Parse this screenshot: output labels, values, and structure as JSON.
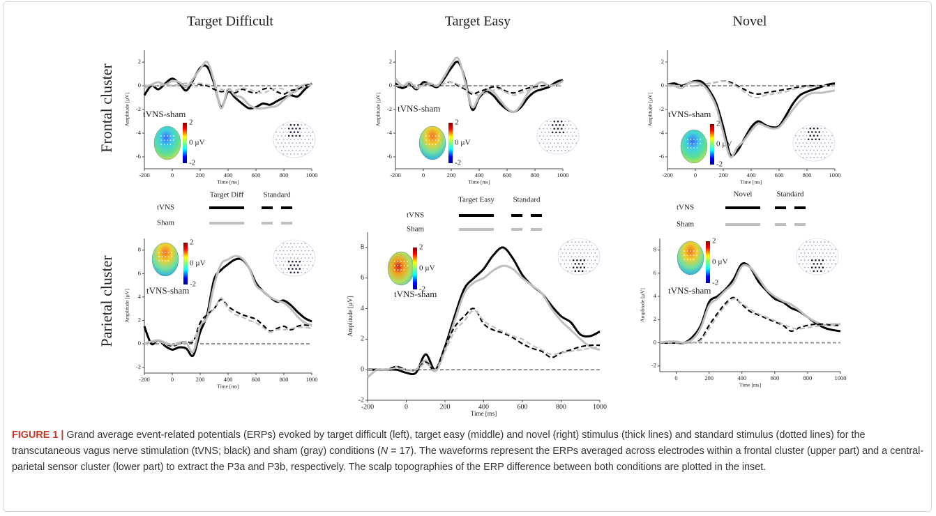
{
  "columns": [
    "Target Difficult",
    "Target Easy",
    "Novel"
  ],
  "rows": [
    "Frontal cluster",
    "Parietal cluster"
  ],
  "legends": [
    {
      "columns": [
        "Target Diff",
        "Standard"
      ],
      "rows": [
        "tVNS",
        "Sham"
      ]
    },
    {
      "columns": [
        "Target Easy",
        "Standard"
      ],
      "rows": [
        "tVNS",
        "Sham"
      ]
    },
    {
      "columns": [
        "Novel",
        "Standard"
      ],
      "rows": [
        "tVNS",
        "Sham"
      ]
    }
  ],
  "caption": {
    "label": "FIGURE 1 |",
    "text_before": "Grand average event-related potentials (ERPs) evoked by target difficult (left), target easy (middle) and novel (right) stimulus (thick lines) and standard stimulus (dotted lines) for the transcutaneous vagus nerve stimulation (tVNS; black) and sham (gray) conditions (",
    "italic": "N",
    "text_after": " = 17). The waveforms represent the ERPs averaged across electrodes within a frontal cluster (upper part) and a central-parietal sensor cluster (lower part) to extract the P3a and P3b, respectively. The scalp topographies of the ERP difference between both conditions are plotted in the inset."
  },
  "chart_data": [
    {
      "type": "line",
      "xlabel": "Time [ms]",
      "ylabel": "Amplitude [µV]",
      "annotation": "tVNS-sham",
      "x": [
        -200,
        -150,
        -100,
        -50,
        0,
        50,
        100,
        150,
        200,
        250,
        300,
        350,
        400,
        450,
        500,
        550,
        600,
        650,
        700,
        750,
        800,
        850,
        900,
        950,
        1000
      ],
      "xlim": [
        -200,
        1000
      ],
      "xticks": [
        -200,
        0,
        200,
        400,
        600,
        800,
        1000
      ],
      "ylim": [
        -7,
        3
      ],
      "yticks": [
        -6,
        -4,
        -2,
        0,
        2
      ],
      "clim": [
        -2,
        2
      ],
      "colorbar_ticks": [
        2,
        {
          "value": 0,
          "label": "0 µV"
        },
        -2
      ],
      "series": [
        {
          "color": "#000000",
          "dashed": false,
          "values": [
            -0.8,
            0,
            -0.3,
            0.2,
            0.6,
            0.2,
            -0.4,
            0.5,
            1.5,
            1.6,
            0.2,
            -1.8,
            -0.5,
            -1.0,
            -1.5,
            -1.9,
            -1.8,
            -1.5,
            -1.6,
            -1.3,
            -1.0,
            -0.8,
            -0.9,
            -0.3,
            0.2
          ]
        },
        {
          "color": "#bfbfbf",
          "dashed": false,
          "values": [
            -0.2,
            0.1,
            0.3,
            0.1,
            0.4,
            0.3,
            -0.1,
            0.6,
            1.4,
            2.0,
            0.4,
            -1.9,
            -0.3,
            -0.8,
            -1.0,
            -1.6,
            -1.9,
            -1.9,
            -1.8,
            -1.7,
            -1.2,
            -0.7,
            -0.2,
            0.1,
            0.1
          ]
        },
        {
          "color": "#000000",
          "dashed": true,
          "values": [
            0,
            0,
            0,
            0.1,
            0,
            0.1,
            0.2,
            0.2,
            0.1,
            0,
            -0.3,
            -0.5,
            -0.4,
            -0.6,
            -0.3,
            -0.5,
            -0.6,
            -0.3,
            -0.2,
            -0.5,
            -0.7,
            -0.4,
            -0.3,
            0,
            0.1
          ]
        },
        {
          "color": "#bfbfbf",
          "dashed": true,
          "values": [
            0,
            0,
            0,
            0.1,
            0,
            0.1,
            0.2,
            0.2,
            0.2,
            0.1,
            -0.1,
            -0.3,
            -0.4,
            -0.4,
            -0.2,
            -0.3,
            -0.5,
            -0.6,
            -0.4,
            -0.2,
            -0.3,
            -0.6,
            -0.4,
            -0.1,
            0.1
          ]
        }
      ]
    },
    {
      "type": "line",
      "xlabel": "Time [ms]",
      "ylabel": "Amplitude [µV]",
      "annotation": "tVNS-sham",
      "x": [
        -200,
        -150,
        -100,
        -50,
        0,
        50,
        100,
        150,
        200,
        250,
        300,
        350,
        400,
        450,
        500,
        550,
        600,
        650,
        700,
        750,
        800,
        850,
        900,
        950,
        1000
      ],
      "xlim": [
        -200,
        1000
      ],
      "xticks": [
        -200,
        0,
        200,
        400,
        600,
        800,
        1000
      ],
      "ylim": [
        -7,
        3
      ],
      "yticks": [
        -6,
        -4,
        -2,
        0,
        2
      ],
      "clim": [
        -2,
        2
      ],
      "colorbar_ticks": [
        2,
        {
          "value": 0,
          "label": "0 µV"
        },
        -2
      ],
      "series": [
        {
          "color": "#000000",
          "dashed": false,
          "values": [
            0.2,
            -0.2,
            0.2,
            -0.3,
            0.3,
            0.1,
            -0.1,
            0.6,
            1.5,
            2.0,
            0.5,
            -2.0,
            -1.0,
            -0.5,
            -0.8,
            -1.5,
            -2.0,
            -2.2,
            -1.8,
            -1.0,
            -0.5,
            -0.3,
            -0.1,
            0.3,
            0.5
          ]
        },
        {
          "color": "#bfbfbf",
          "dashed": false,
          "values": [
            0.6,
            0.0,
            0.3,
            -0.2,
            0.1,
            0.2,
            0.0,
            0.8,
            1.8,
            2.3,
            0.3,
            -1.8,
            -0.9,
            -0.3,
            -0.5,
            -1.2,
            -1.9,
            -2.2,
            -1.6,
            -0.6,
            0.0,
            0.3,
            0.0,
            0.1,
            0.4
          ]
        },
        {
          "color": "#000000",
          "dashed": true,
          "values": [
            0,
            -0.2,
            0,
            0,
            0.1,
            0.1,
            0,
            0.2,
            0.3,
            0,
            -0.3,
            -0.7,
            -0.5,
            -0.3,
            -0.1,
            -0.2,
            -0.5,
            -0.6,
            -0.4,
            -0.2,
            -0.1,
            0,
            0,
            0,
            0
          ]
        },
        {
          "color": "#bfbfbf",
          "dashed": true,
          "values": [
            0,
            0,
            0.1,
            0,
            0,
            0.1,
            0,
            0.2,
            0.3,
            0.1,
            -0.2,
            -0.6,
            -0.8,
            -0.6,
            -0.4,
            -0.3,
            -0.6,
            -0.8,
            -0.6,
            -0.4,
            -0.2,
            -0.1,
            0,
            0,
            0
          ]
        }
      ]
    },
    {
      "type": "line",
      "xlabel": "Time [ms]",
      "ylabel": "Amplitude [µV]",
      "annotation": "tVNS-sham",
      "x": [
        -200,
        -150,
        -100,
        -50,
        0,
        50,
        100,
        150,
        200,
        250,
        300,
        350,
        400,
        450,
        500,
        550,
        600,
        650,
        700,
        750,
        800,
        850,
        900,
        950,
        1000
      ],
      "xlim": [
        -200,
        1000
      ],
      "xticks": [
        -200,
        0,
        200,
        400,
        600,
        800,
        1000
      ],
      "ylim": [
        -7,
        3
      ],
      "yticks": [
        -6,
        -4,
        -2,
        0,
        2
      ],
      "clim": [
        -2,
        2
      ],
      "colorbar_ticks": [
        2,
        {
          "value": 0,
          "label": "0 µV"
        },
        -2
      ],
      "series": [
        {
          "color": "#000000",
          "dashed": false,
          "values": [
            0.1,
            0.2,
            0,
            0.2,
            0.4,
            0.3,
            -0.4,
            -1.5,
            -3.5,
            -5.8,
            -5.5,
            -4.5,
            -3.5,
            -3.0,
            -3.3,
            -3.5,
            -3.4,
            -2.5,
            -1.5,
            -0.8,
            -0.5,
            -0.3,
            -0.1,
            0.1,
            0.2
          ]
        },
        {
          "color": "#bfbfbf",
          "dashed": false,
          "values": [
            0.1,
            0.0,
            -0.2,
            0.2,
            0.3,
            0.1,
            -0.6,
            -1.8,
            -4.0,
            -6.0,
            -5.2,
            -4.6,
            -3.8,
            -3.2,
            -3.4,
            -3.6,
            -3.5,
            -2.8,
            -2.0,
            -1.3,
            -0.8,
            -0.6,
            -0.6,
            -0.5,
            -0.4
          ]
        },
        {
          "color": "#000000",
          "dashed": true,
          "values": [
            0,
            0,
            0,
            0,
            0,
            0.1,
            0.2,
            0.3,
            0.4,
            0.3,
            0,
            -0.3,
            -0.6,
            -0.7,
            -0.6,
            -0.5,
            -0.4,
            -0.3,
            -0.2,
            -0.1,
            0,
            0,
            0,
            0,
            0
          ]
        },
        {
          "color": "#bfbfbf",
          "dashed": true,
          "values": [
            0,
            0,
            0,
            0,
            0,
            0.1,
            0.2,
            0.3,
            0.4,
            0.2,
            -0.1,
            -0.5,
            -0.9,
            -1.0,
            -0.8,
            -0.7,
            -0.6,
            -0.5,
            -0.3,
            -0.2,
            -0.1,
            -0.1,
            0,
            0,
            0
          ]
        }
      ]
    },
    {
      "type": "line",
      "xlabel": "Time [ms]",
      "ylabel": "Amplitude [µV]",
      "annotation": "tVNS-sham",
      "x": [
        -200,
        -150,
        -100,
        -50,
        0,
        50,
        100,
        150,
        200,
        250,
        300,
        350,
        400,
        450,
        500,
        550,
        600,
        650,
        700,
        750,
        800,
        850,
        900,
        950,
        1000
      ],
      "xlim": [
        -200,
        1000
      ],
      "xticks": [
        -200,
        0,
        200,
        400,
        600,
        800,
        1000
      ],
      "ylim": [
        -2.5,
        9
      ],
      "yticks": [
        -2,
        0,
        2,
        4,
        6,
        8
      ],
      "clim": [
        -2,
        2
      ],
      "colorbar_ticks": [
        2,
        {
          "value": 0,
          "label": "0 µV"
        },
        -2
      ],
      "series": [
        {
          "color": "#000000",
          "dashed": false,
          "values": [
            1.5,
            0,
            0.3,
            -0.2,
            -0.5,
            -0.3,
            -0.4,
            -1.0,
            1.0,
            2.5,
            5.5,
            6.3,
            6.8,
            7.2,
            7.2,
            6.5,
            5.2,
            4.5,
            4.0,
            3.6,
            3.7,
            3.3,
            2.7,
            2.2,
            1.9
          ]
        },
        {
          "color": "#bfbfbf",
          "dashed": false,
          "values": [
            0,
            0.2,
            0.3,
            0.1,
            -0.1,
            0.1,
            0.1,
            -0.7,
            1.5,
            2.3,
            5.0,
            6.8,
            7.2,
            7.5,
            7.3,
            6.5,
            5.0,
            4.5,
            4.0,
            3.7,
            3.5,
            3.0,
            2.3,
            1.8,
            1.6
          ]
        },
        {
          "color": "#000000",
          "dashed": true,
          "values": [
            0,
            0.1,
            0.2,
            0,
            -0.2,
            0,
            0.2,
            0.2,
            1.8,
            2.5,
            3.0,
            3.8,
            3.2,
            2.8,
            2.5,
            2.3,
            2.1,
            1.6,
            1.1,
            1.3,
            1.5,
            1.2,
            1.5,
            1.6,
            1.5
          ]
        },
        {
          "color": "#bfbfbf",
          "dashed": true,
          "values": [
            0,
            0.1,
            0.2,
            0,
            -0.1,
            0,
            0.2,
            0.3,
            1.5,
            2.3,
            3.0,
            3.9,
            3.0,
            2.5,
            2.3,
            2.0,
            1.8,
            1.4,
            1.0,
            1.2,
            1.2,
            1.3,
            1.4,
            1.4,
            1.3
          ]
        }
      ]
    },
    {
      "type": "line",
      "xlabel": "Time [ms]",
      "ylabel": "Amplitude [µV]",
      "annotation": "tVNS-sham",
      "x": [
        -200,
        -150,
        -100,
        -50,
        0,
        50,
        100,
        150,
        200,
        250,
        300,
        350,
        400,
        450,
        500,
        550,
        600,
        650,
        700,
        750,
        800,
        850,
        900,
        950,
        1000
      ],
      "xlim": [
        -200,
        1000
      ],
      "xticks": [
        -200,
        0,
        200,
        400,
        600,
        800,
        1000
      ],
      "ylim": [
        -2,
        9
      ],
      "yticks": [
        -2,
        0,
        2,
        4,
        6,
        8
      ],
      "clim": [
        -2,
        2
      ],
      "colorbar_ticks": [
        2,
        {
          "value": 0,
          "label": "0 µV"
        },
        -2
      ],
      "series": [
        {
          "color": "#000000",
          "dashed": false,
          "values": [
            0,
            0,
            0,
            0,
            -0.2,
            -0.2,
            1.0,
            0.0,
            1.5,
            3.5,
            5.3,
            6.0,
            6.6,
            7.5,
            8.0,
            7.3,
            6.2,
            5.5,
            5.0,
            4.2,
            3.5,
            3.1,
            2.3,
            2.2,
            2.5
          ]
        },
        {
          "color": "#bfbfbf",
          "dashed": false,
          "values": [
            -0.5,
            0,
            0,
            0.2,
            0,
            0,
            0.6,
            -0.1,
            1.3,
            3.2,
            5.0,
            5.7,
            6.0,
            6.5,
            6.8,
            6.6,
            6.0,
            5.5,
            5.0,
            4.0,
            3.2,
            2.6,
            2.0,
            1.5,
            1.3
          ]
        },
        {
          "color": "#000000",
          "dashed": true,
          "values": [
            0,
            0,
            0,
            0.2,
            0,
            0,
            0.5,
            0,
            1.5,
            2.8,
            3.5,
            4.0,
            3.0,
            2.6,
            2.4,
            2.1,
            1.7,
            1.4,
            1.2,
            0.8,
            1.1,
            1.3,
            1.5,
            1.6,
            1.6
          ]
        },
        {
          "color": "#bfbfbf",
          "dashed": true,
          "values": [
            0,
            0,
            0,
            0.1,
            0,
            0,
            0.4,
            0,
            1.2,
            2.5,
            3.2,
            3.9,
            3.2,
            2.8,
            2.5,
            2.2,
            2.0,
            1.6,
            1.3,
            1.0,
            1.1,
            1.2,
            1.3,
            1.4,
            1.5
          ]
        }
      ]
    },
    {
      "type": "line",
      "xlabel": "Time [ms]",
      "ylabel": "Amplitude [µV]",
      "annotation": "tVNS-sham",
      "x": [
        -100,
        -50,
        0,
        50,
        100,
        150,
        200,
        250,
        300,
        350,
        400,
        450,
        500,
        550,
        600,
        650,
        700,
        750,
        800,
        850,
        900,
        950,
        1000
      ],
      "xlim": [
        -100,
        1000
      ],
      "xticks": [
        0,
        200,
        400,
        600,
        800,
        1000
      ],
      "ylim": [
        -2.5,
        9
      ],
      "yticks": [
        -2,
        0,
        2,
        4,
        6,
        8
      ],
      "clim": [
        -2,
        2
      ],
      "colorbar_ticks": [
        2,
        {
          "value": 0,
          "label": "0 µV"
        },
        -2
      ],
      "series": [
        {
          "color": "#000000",
          "dashed": false,
          "values": [
            0,
            0,
            0,
            0,
            0.5,
            1.5,
            3.5,
            4.0,
            4.6,
            5.5,
            6.8,
            6.5,
            5.3,
            4.5,
            3.8,
            3.5,
            3.0,
            2.7,
            2.2,
            1.7,
            1.3,
            1.1,
            1.0
          ]
        },
        {
          "color": "#bfbfbf",
          "dashed": false,
          "values": [
            0,
            0.1,
            0.1,
            0,
            0.3,
            1.3,
            3.2,
            3.8,
            4.5,
            5.2,
            6.6,
            6.5,
            5.6,
            4.6,
            4.0,
            3.6,
            3.3,
            2.8,
            2.2,
            1.8,
            1.5,
            1.6,
            1.6
          ]
        },
        {
          "color": "#000000",
          "dashed": true,
          "values": [
            0,
            0,
            0,
            0,
            0,
            0.3,
            1.5,
            2.5,
            3.4,
            3.9,
            3.3,
            2.7,
            2.4,
            2.1,
            1.8,
            1.5,
            1.0,
            1.3,
            1.5,
            1.6,
            1.6,
            1.5,
            1.5
          ]
        },
        {
          "color": "#bfbfbf",
          "dashed": true,
          "values": [
            0,
            0,
            0,
            0,
            0,
            0.2,
            1.2,
            2.3,
            3.2,
            3.8,
            3.4,
            2.9,
            2.5,
            2.2,
            1.9,
            1.6,
            1.3,
            1.2,
            1.3,
            1.4,
            1.5,
            1.5,
            1.6
          ]
        }
      ]
    }
  ]
}
